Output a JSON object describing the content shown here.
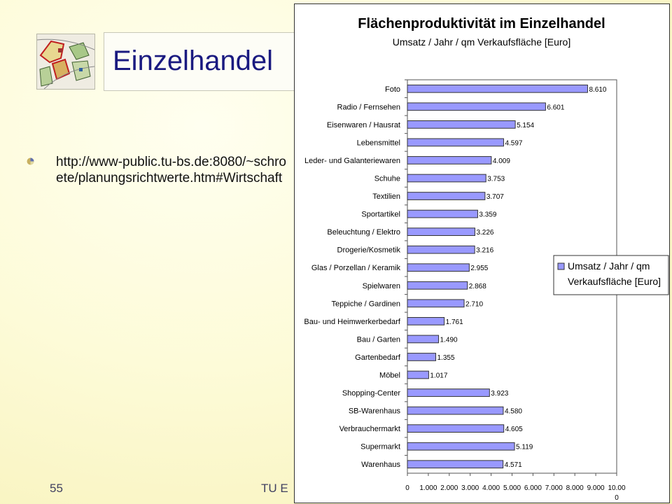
{
  "slide": {
    "title": "Einzelhandel",
    "bullet": "http://www-public.tu-bs.de:8080/~schroete/planungsrichtwerte.htm#Wirtschaft",
    "footer_number": "55",
    "footer_text": "TU E"
  },
  "colors": {
    "title": "#1a1a80",
    "bar_fill": "#9999ff",
    "bar_stroke": "#333333"
  },
  "chart_data": {
    "type": "bar",
    "orientation": "horizontal",
    "title": "Flächenproduktivität im Einzelhandel",
    "subtitle": "Umsatz / Jahr / qm Verkaufsfläche [Euro]",
    "categories": [
      "Foto",
      "Radio / Fernsehen",
      "Eisenwaren / Hausrat",
      "Lebensmittel",
      "Leder- und Galanteriewaren",
      "Schuhe",
      "Textilien",
      "Sportartikel",
      "Beleuchtung / Elektro",
      "Drogerie/Kosmetik",
      "Glas / Porzellan / Keramik",
      "Spielwaren",
      "Teppiche / Gardinen",
      "Bau- und Heimwerkerbedarf",
      "Bau / Garten",
      "Gartenbedarf",
      "Möbel",
      "Shopping-Center",
      "SB-Warenhaus",
      "Verbrauchermarkt",
      "Supermarkt",
      "Warenhaus"
    ],
    "values": [
      8610,
      6601,
      5154,
      4597,
      4009,
      3753,
      3707,
      3359,
      3226,
      3216,
      2955,
      2868,
      2710,
      1761,
      1490,
      1355,
      1017,
      3923,
      4580,
      4605,
      5119,
      4571
    ],
    "value_labels": [
      "8.610",
      "6.601",
      "5.154",
      "4.597",
      "4.009",
      "3.753",
      "3.707",
      "3.359",
      "3.226",
      "3.216",
      "2.955",
      "2.868",
      "2.710",
      "1.761",
      "1.490",
      "1.355",
      "1.017",
      "3.923",
      "4.580",
      "4.605",
      "5.119",
      "4.571"
    ],
    "x_ticks": [
      0,
      1000,
      2000,
      3000,
      4000,
      5000,
      6000,
      7000,
      8000,
      9000,
      10000
    ],
    "x_tick_labels": [
      "0",
      "1.000",
      "2.000",
      "3.000",
      "4.000",
      "5.000",
      "6.000",
      "7.000",
      "8.000",
      "9.000",
      "10.000"
    ],
    "xlim": [
      0,
      10000
    ],
    "legend": {
      "placement": "right",
      "label_line1": "Umsatz / Jahr / qm",
      "label_line2": "Verkaufsfläche [Euro]"
    }
  }
}
